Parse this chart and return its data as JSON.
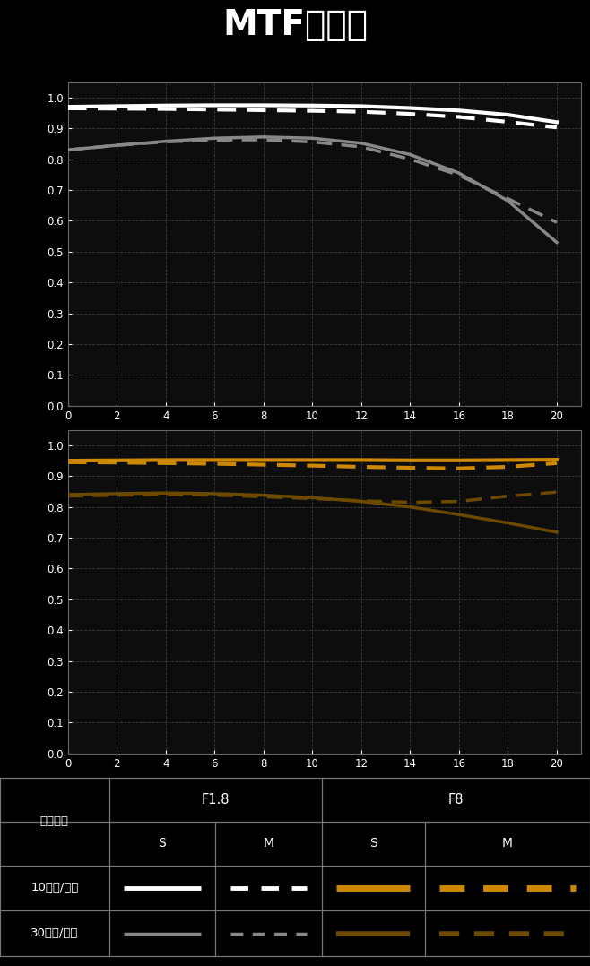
{
  "title": "MTF曲线图",
  "bg_color": "#000000",
  "text_color": "#ffffff",
  "x_values": [
    0,
    2,
    4,
    6,
    8,
    10,
    12,
    14,
    16,
    18,
    20
  ],
  "x_ticks": [
    0,
    2,
    4,
    6,
    8,
    10,
    12,
    14,
    16,
    18,
    20
  ],
  "y_ticks": [
    0,
    0.1,
    0.2,
    0.3,
    0.4,
    0.5,
    0.6,
    0.7,
    0.8,
    0.9,
    1
  ],
  "chart1": {
    "white_solid": [
      0.97,
      0.972,
      0.974,
      0.975,
      0.975,
      0.974,
      0.972,
      0.966,
      0.958,
      0.944,
      0.92
    ],
    "white_dashed": [
      0.965,
      0.964,
      0.963,
      0.961,
      0.959,
      0.957,
      0.954,
      0.947,
      0.937,
      0.921,
      0.903
    ],
    "gray_solid": [
      0.83,
      0.845,
      0.858,
      0.868,
      0.872,
      0.868,
      0.852,
      0.815,
      0.755,
      0.665,
      0.53
    ],
    "gray_dashed": [
      0.83,
      0.845,
      0.856,
      0.862,
      0.863,
      0.856,
      0.84,
      0.8,
      0.748,
      0.672,
      0.595
    ],
    "white_color": "#ffffff",
    "gray_color": "#888888"
  },
  "chart2": {
    "orange_solid": [
      0.95,
      0.951,
      0.952,
      0.952,
      0.952,
      0.952,
      0.952,
      0.951,
      0.951,
      0.952,
      0.953
    ],
    "orange_dashed": [
      0.945,
      0.944,
      0.942,
      0.94,
      0.937,
      0.934,
      0.93,
      0.927,
      0.925,
      0.93,
      0.942
    ],
    "darkorange_solid": [
      0.84,
      0.843,
      0.845,
      0.843,
      0.838,
      0.83,
      0.818,
      0.8,
      0.775,
      0.748,
      0.718
    ],
    "darkorange_dashed": [
      0.835,
      0.838,
      0.84,
      0.838,
      0.833,
      0.827,
      0.82,
      0.815,
      0.818,
      0.835,
      0.848
    ],
    "orange_color": "#CC8800",
    "darkorange_color": "#6b4a00"
  },
  "legend": {
    "f18_label": "F1.8",
    "f8_label": "F8",
    "s_label": "S",
    "m_label": "M",
    "row1_label": "10线对/毫米",
    "row2_label": "30线对/毫米",
    "freq_label": "空间频率"
  }
}
